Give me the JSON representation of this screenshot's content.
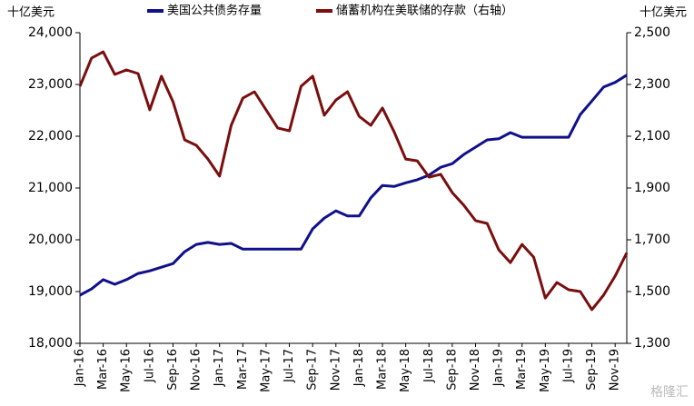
{
  "chart_data": {
    "type": "line",
    "left_axis_label": "十亿美元",
    "right_axis_label": "十亿美元",
    "watermark": "格隆汇",
    "categories": [
      "Jan-16",
      null,
      "Mar-16",
      null,
      "May-16",
      null,
      "Jul-16",
      null,
      "Sep-16",
      null,
      "Nov-16",
      null,
      "Jan-17",
      null,
      "Mar-17",
      null,
      "May-17",
      null,
      "Jul-17",
      null,
      "Sep-17",
      null,
      "Nov-17",
      null,
      "Jan-18",
      null,
      "Mar-18",
      null,
      "May-18",
      null,
      "Jul-18",
      null,
      "Sep-18",
      null,
      "Nov-18",
      null,
      "Jan-19",
      null,
      "Mar-19",
      null,
      "May-19",
      null,
      "Jul-19",
      null,
      "Sep-19",
      null,
      "Nov-19",
      null
    ],
    "series": [
      {
        "name": "美国公共债务存量",
        "color": "#10108a",
        "axis": "y",
        "values": [
          18930,
          19050,
          19230,
          19140,
          19230,
          19350,
          19400,
          19470,
          19540,
          19770,
          19910,
          19950,
          19910,
          19930,
          19820,
          19820,
          19820,
          19820,
          19820,
          19820,
          20210,
          20420,
          20560,
          20460,
          20460,
          20810,
          21050,
          21030,
          21100,
          21160,
          21250,
          21400,
          21470,
          21650,
          21790,
          21930,
          21950,
          22070,
          21980,
          21980,
          21980,
          21980,
          21980,
          22420,
          22680,
          22950,
          23040,
          23180
        ]
      },
      {
        "name": "储蓄机构在美联储的存款（右轴）",
        "color": "#7a0e0e",
        "axis": "y2",
        "values": [
          2293,
          2402,
          2426,
          2339,
          2356,
          2342,
          2202,
          2332,
          2233,
          2086,
          2065,
          2012,
          1946,
          2142,
          2247,
          2272,
          2202,
          2132,
          2121,
          2293,
          2332,
          2181,
          2240,
          2272,
          2177,
          2142,
          2209,
          2118,
          2012,
          2005,
          1942,
          1953,
          1882,
          1833,
          1774,
          1763,
          1661,
          1612,
          1682,
          1633,
          1475,
          1535,
          1507,
          1500,
          1430,
          1486,
          1560,
          1650
        ]
      }
    ],
    "ylim": [
      18000,
      24000
    ],
    "yticks": [
      {
        "value": 18000,
        "label": "18,000"
      },
      {
        "value": 19000,
        "label": "19,000"
      },
      {
        "value": 20000,
        "label": "20,000"
      },
      {
        "value": 21000,
        "label": "21,000"
      },
      {
        "value": 22000,
        "label": "22,000"
      },
      {
        "value": 23000,
        "label": "23,000"
      },
      {
        "value": 24000,
        "label": "24,000"
      }
    ],
    "y2lim": [
      1300,
      2500
    ],
    "y2ticks": [
      {
        "value": 1300,
        "label": "1,300"
      },
      {
        "value": 1500,
        "label": "1,500"
      },
      {
        "value": 1700,
        "label": "1,700"
      },
      {
        "value": 1900,
        "label": "1,900"
      },
      {
        "value": 2100,
        "label": "2,100"
      },
      {
        "value": 2300,
        "label": "2,300"
      },
      {
        "value": 2500,
        "label": "2,500"
      }
    ],
    "legend": "top"
  }
}
